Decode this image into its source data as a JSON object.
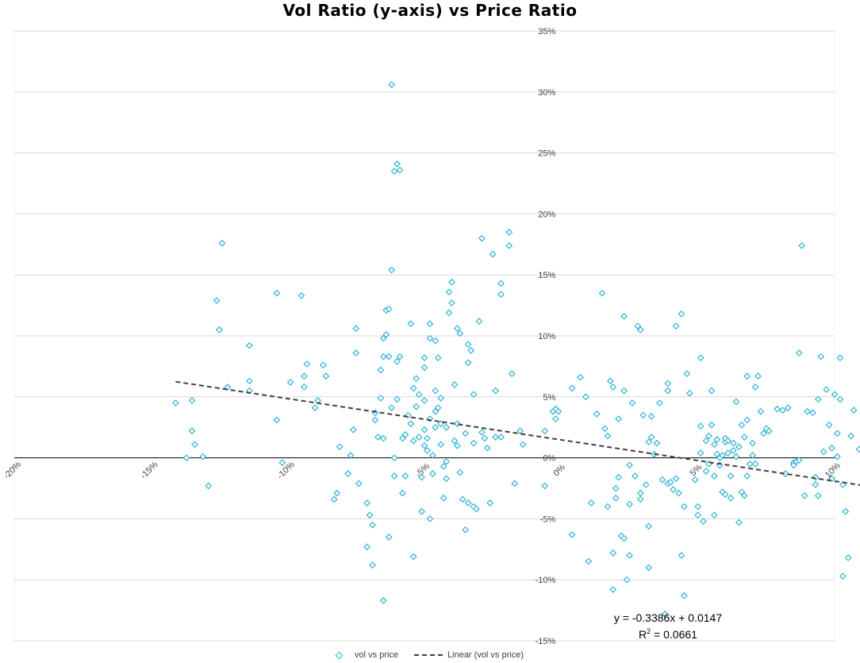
{
  "chart_data": {
    "type": "scatter",
    "title": "Vol Ratio (y-axis) vs Price Ratio",
    "xlim": [
      -0.2,
      0.1
    ],
    "ylim": [
      -0.15,
      0.35
    ],
    "x_ticks": [
      "-20%",
      "-15%",
      "-10%",
      "-5%",
      "0%",
      "5%",
      "10%"
    ],
    "y_ticks": [
      "35%",
      "30%",
      "25%",
      "20%",
      "15%",
      "10%",
      "5%",
      "0%",
      "-5%",
      "-10%",
      "-15%"
    ],
    "grid": "horizontal",
    "legend": "bottom",
    "colors": {
      "marker": "#2fb3d6",
      "trendline": "#404040",
      "grid": "#d9d9d9"
    },
    "series": [
      {
        "name": "vol vs price",
        "points": [
          [
            -0.141,
            0.045
          ],
          [
            -0.137,
            0.0
          ],
          [
            -0.135,
            0.022
          ],
          [
            -0.135,
            0.047
          ],
          [
            -0.134,
            0.011
          ],
          [
            -0.131,
            0.001
          ],
          [
            -0.129,
            -0.023
          ],
          [
            -0.124,
            0.176
          ],
          [
            -0.125,
            0.105
          ],
          [
            -0.126,
            0.129
          ],
          [
            -0.122,
            0.058
          ],
          [
            -0.114,
            0.063
          ],
          [
            -0.114,
            0.055
          ],
          [
            -0.114,
            0.092
          ],
          [
            -0.104,
            0.135
          ],
          [
            -0.104,
            0.031
          ],
          [
            -0.102,
            -0.004
          ],
          [
            -0.099,
            0.062
          ],
          [
            -0.095,
            0.133
          ],
          [
            -0.094,
            0.058
          ],
          [
            -0.094,
            0.067
          ],
          [
            -0.093,
            0.077
          ],
          [
            -0.09,
            0.041
          ],
          [
            -0.089,
            0.047
          ],
          [
            -0.087,
            0.076
          ],
          [
            -0.086,
            0.067
          ],
          [
            -0.081,
            0.009
          ],
          [
            -0.082,
            -0.029
          ],
          [
            -0.083,
            -0.034
          ],
          [
            -0.078,
            -0.013
          ],
          [
            -0.077,
            0.002
          ],
          [
            -0.076,
            0.023
          ],
          [
            -0.075,
            0.086
          ],
          [
            -0.075,
            0.106
          ],
          [
            -0.074,
            -0.021
          ],
          [
            -0.071,
            -0.037
          ],
          [
            -0.07,
            -0.047
          ],
          [
            -0.069,
            -0.055
          ],
          [
            -0.071,
            -0.073
          ],
          [
            -0.069,
            -0.088
          ],
          [
            -0.068,
            0.031
          ],
          [
            -0.068,
            0.037
          ],
          [
            -0.067,
            0.017
          ],
          [
            -0.066,
            0.049
          ],
          [
            -0.066,
            0.072
          ],
          [
            -0.065,
            0.016
          ],
          [
            -0.065,
            0.083
          ],
          [
            -0.065,
            0.098
          ],
          [
            -0.064,
            0.101
          ],
          [
            -0.064,
            0.121
          ],
          [
            -0.063,
            0.122
          ],
          [
            -0.063,
            0.083
          ],
          [
            -0.063,
            -0.065
          ],
          [
            -0.065,
            -0.117
          ],
          [
            -0.062,
            0.306
          ],
          [
            -0.062,
            0.154
          ],
          [
            -0.061,
            0.235
          ],
          [
            -0.06,
            0.241
          ],
          [
            -0.059,
            0.236
          ],
          [
            -0.062,
            0.041
          ],
          [
            -0.061,
            0.0
          ],
          [
            -0.061,
            -0.015
          ],
          [
            -0.06,
            0.048
          ],
          [
            -0.06,
            0.079
          ],
          [
            -0.059,
            0.083
          ],
          [
            -0.058,
            0.016
          ],
          [
            -0.058,
            -0.029
          ],
          [
            -0.057,
            -0.015
          ],
          [
            -0.057,
            0.019
          ],
          [
            -0.056,
            0.035
          ],
          [
            -0.055,
            0.11
          ],
          [
            -0.055,
            0.028
          ],
          [
            -0.054,
            0.057
          ],
          [
            -0.054,
            0.014
          ],
          [
            -0.054,
            -0.081
          ],
          [
            -0.053,
            0.065
          ],
          [
            -0.053,
            0.042
          ],
          [
            -0.052,
            0.052
          ],
          [
            -0.052,
            0.017
          ],
          [
            -0.051,
            -0.044
          ],
          [
            -0.051,
            -0.016
          ],
          [
            -0.05,
            0.082
          ],
          [
            -0.05,
            0.074
          ],
          [
            -0.05,
            0.047
          ],
          [
            -0.05,
            0.023
          ],
          [
            -0.05,
            0.01
          ],
          [
            -0.049,
            0.016
          ],
          [
            -0.049,
            0.006
          ],
          [
            -0.048,
            0.098
          ],
          [
            -0.048,
            0.11
          ],
          [
            -0.048,
            0.032
          ],
          [
            -0.048,
            -0.05
          ],
          [
            -0.047,
            0.002
          ],
          [
            -0.047,
            -0.013
          ],
          [
            -0.046,
            0.038
          ],
          [
            -0.046,
            0.025
          ],
          [
            -0.046,
            0.055
          ],
          [
            -0.046,
            0.096
          ],
          [
            -0.045,
            0.082
          ],
          [
            -0.045,
            0.041
          ],
          [
            -0.044,
            0.049
          ],
          [
            -0.044,
            0.028
          ],
          [
            -0.044,
            0.011
          ],
          [
            -0.043,
            -0.007
          ],
          [
            -0.043,
            -0.033
          ],
          [
            -0.042,
            -0.017
          ],
          [
            -0.042,
            0.025
          ],
          [
            -0.042,
            -0.003
          ],
          [
            -0.041,
            0.136
          ],
          [
            -0.041,
            0.119
          ],
          [
            -0.04,
            0.127
          ],
          [
            -0.04,
            0.144
          ],
          [
            -0.039,
            0.06
          ],
          [
            -0.039,
            0.014
          ],
          [
            -0.038,
            0.106
          ],
          [
            -0.038,
            0.028
          ],
          [
            -0.038,
            0.01
          ],
          [
            -0.037,
            0.102
          ],
          [
            -0.037,
            -0.012
          ],
          [
            -0.036,
            -0.034
          ],
          [
            -0.035,
            0.02
          ],
          [
            -0.035,
            -0.059
          ],
          [
            -0.034,
            0.078
          ],
          [
            -0.034,
            0.093
          ],
          [
            -0.034,
            -0.037
          ],
          [
            -0.033,
            0.088
          ],
          [
            -0.032,
            0.052
          ],
          [
            -0.032,
            0.012
          ],
          [
            -0.032,
            -0.04
          ],
          [
            -0.031,
            -0.042
          ],
          [
            -0.03,
            0.112
          ],
          [
            -0.029,
            0.18
          ],
          [
            -0.029,
            0.021
          ],
          [
            -0.028,
            0.016
          ],
          [
            -0.027,
            0.008
          ],
          [
            -0.026,
            -0.037
          ],
          [
            -0.025,
            0.167
          ],
          [
            -0.024,
            0.055
          ],
          [
            -0.024,
            0.017
          ],
          [
            -0.022,
            0.143
          ],
          [
            -0.022,
            0.134
          ],
          [
            -0.022,
            0.017
          ],
          [
            -0.019,
            0.185
          ],
          [
            -0.019,
            0.174
          ],
          [
            -0.018,
            0.069
          ],
          [
            -0.017,
            -0.021
          ],
          [
            -0.015,
            0.022
          ],
          [
            -0.014,
            0.011
          ],
          [
            -0.006,
            0.022
          ],
          [
            -0.006,
            -0.023
          ],
          [
            -0.003,
            0.038
          ],
          [
            -0.002,
            0.04
          ],
          [
            -0.002,
            0.032
          ],
          [
            -0.001,
            0.038
          ],
          [
            0.004,
            0.057
          ],
          [
            0.004,
            -0.063
          ],
          [
            0.007,
            0.066
          ],
          [
            0.009,
            0.05
          ],
          [
            0.01,
            -0.085
          ],
          [
            0.011,
            -0.037
          ],
          [
            0.013,
            0.036
          ],
          [
            0.015,
            0.135
          ],
          [
            0.016,
            0.024
          ],
          [
            0.017,
            -0.04
          ],
          [
            0.017,
            0.018
          ],
          [
            0.019,
            -0.078
          ],
          [
            0.018,
            0.063
          ],
          [
            0.019,
            0.058
          ],
          [
            0.019,
            -0.108
          ],
          [
            0.02,
            -0.033
          ],
          [
            0.02,
            -0.025
          ],
          [
            0.021,
            0.032
          ],
          [
            0.021,
            -0.016
          ],
          [
            0.022,
            -0.064
          ],
          [
            0.023,
            0.116
          ],
          [
            0.023,
            -0.066
          ],
          [
            0.023,
            0.055
          ],
          [
            0.024,
            -0.1
          ],
          [
            0.025,
            -0.006
          ],
          [
            0.025,
            -0.08
          ],
          [
            0.025,
            -0.038
          ],
          [
            0.026,
            0.045
          ],
          [
            0.027,
            -0.015
          ],
          [
            0.028,
            0.108
          ],
          [
            0.029,
            0.105
          ],
          [
            0.029,
            -0.029
          ],
          [
            0.029,
            -0.034
          ],
          [
            0.03,
            0.035
          ],
          [
            0.031,
            -0.022
          ],
          [
            0.032,
            -0.056
          ],
          [
            0.032,
            0.013
          ],
          [
            0.032,
            -0.09
          ],
          [
            0.033,
            0.017
          ],
          [
            0.033,
            0.034
          ],
          [
            0.034,
            0.003
          ],
          [
            0.035,
            0.012
          ],
          [
            0.036,
            0.045
          ],
          [
            0.037,
            -0.018
          ],
          [
            0.038,
            -0.128
          ],
          [
            0.039,
            0.055
          ],
          [
            0.039,
            -0.021
          ],
          [
            0.039,
            0.061
          ],
          [
            0.04,
            -0.02
          ],
          [
            0.041,
            -0.026
          ],
          [
            0.042,
            0.108
          ],
          [
            0.042,
            -0.017
          ],
          [
            0.043,
            -0.029
          ],
          [
            0.044,
            0.118
          ],
          [
            0.044,
            -0.08
          ],
          [
            0.045,
            -0.113
          ],
          [
            0.045,
            -0.04
          ],
          [
            0.046,
            0.069
          ],
          [
            0.047,
            0.053
          ],
          [
            0.049,
            -0.018
          ],
          [
            0.05,
            -0.04
          ],
          [
            0.05,
            -0.047
          ],
          [
            0.051,
            0.026
          ],
          [
            0.051,
            0.082
          ],
          [
            0.051,
            0.004
          ],
          [
            0.052,
            -0.052
          ],
          [
            0.053,
            -0.011
          ],
          [
            0.053,
            0.014
          ],
          [
            0.054,
            -0.005
          ],
          [
            0.054,
            0.018
          ],
          [
            0.055,
            0.055
          ],
          [
            0.055,
            0.027
          ],
          [
            0.056,
            -0.015
          ],
          [
            0.056,
            0.011
          ],
          [
            0.056,
            -0.047
          ],
          [
            0.057,
            0.015
          ],
          [
            0.057,
            0.003
          ],
          [
            0.058,
            0.0
          ],
          [
            0.058,
            -0.006
          ],
          [
            0.059,
            0.002
          ],
          [
            0.059,
            -0.028
          ],
          [
            0.06,
            0.013
          ],
          [
            0.06,
            0.016
          ],
          [
            0.06,
            -0.03
          ],
          [
            0.061,
            0.004
          ],
          [
            0.061,
            0.014
          ],
          [
            0.062,
            -0.015
          ],
          [
            0.062,
            -0.033
          ],
          [
            0.063,
            0.012
          ],
          [
            0.063,
            0.006
          ],
          [
            0.064,
            0.046
          ],
          [
            0.064,
            0.001
          ],
          [
            0.065,
            -0.053
          ],
          [
            0.065,
            0.009
          ],
          [
            0.066,
            0.027
          ],
          [
            0.066,
            -0.028
          ],
          [
            0.067,
            -0.031
          ],
          [
            0.067,
            0.017
          ],
          [
            0.068,
            -0.015
          ],
          [
            0.068,
            0.031
          ],
          [
            0.068,
            0.067
          ],
          [
            0.069,
            -0.005
          ],
          [
            0.07,
            0.002
          ],
          [
            0.07,
            0.012
          ],
          [
            0.071,
            -0.005
          ],
          [
            0.071,
            0.058
          ],
          [
            0.072,
            0.067
          ],
          [
            0.073,
            0.038
          ],
          [
            0.074,
            0.02
          ],
          [
            0.075,
            0.024
          ],
          [
            0.076,
            0.022
          ],
          [
            0.079,
            0.04
          ],
          [
            0.081,
            0.039
          ],
          [
            0.082,
            -0.013
          ],
          [
            0.083,
            0.041
          ],
          [
            0.085,
            -0.004
          ],
          [
            0.085,
            -0.006
          ],
          [
            0.086,
            -0.003
          ],
          [
            0.087,
            -0.002
          ],
          [
            0.087,
            0.086
          ],
          [
            0.088,
            0.174
          ],
          [
            0.089,
            -0.031
          ],
          [
            0.09,
            0.038
          ],
          [
            0.092,
            0.037
          ],
          [
            0.093,
            -0.016
          ],
          [
            0.093,
            -0.022
          ],
          [
            0.094,
            -0.031
          ],
          [
            0.094,
            0.048
          ],
          [
            0.095,
            0.083
          ],
          [
            0.096,
            0.005
          ],
          [
            0.097,
            0.056
          ],
          [
            0.098,
            0.027
          ],
          [
            0.099,
            -0.017
          ],
          [
            0.099,
            0.008
          ],
          [
            0.1,
            0.052
          ],
          [
            0.101,
            0.02
          ],
          [
            0.101,
            0.001
          ],
          [
            0.102,
            0.082
          ],
          [
            0.102,
            0.048
          ],
          [
            0.103,
            -0.022
          ],
          [
            0.103,
            -0.097
          ],
          [
            0.104,
            -0.044
          ],
          [
            0.105,
            -0.082
          ],
          [
            0.106,
            0.018
          ],
          [
            0.107,
            0.039
          ],
          [
            0.109,
            0.007
          ],
          [
            0.112,
            0.018
          ]
        ]
      }
    ],
    "trendline": {
      "name": "Linear (vol vs price)",
      "slope": -0.3386,
      "intercept": 0.0147,
      "x_range": [
        -0.141,
        0.121
      ],
      "equation": "y = -0.3386x + 0.0147",
      "r2_label": "R",
      "r2_sup": "2",
      "r2_value": " = 0.0661"
    }
  }
}
